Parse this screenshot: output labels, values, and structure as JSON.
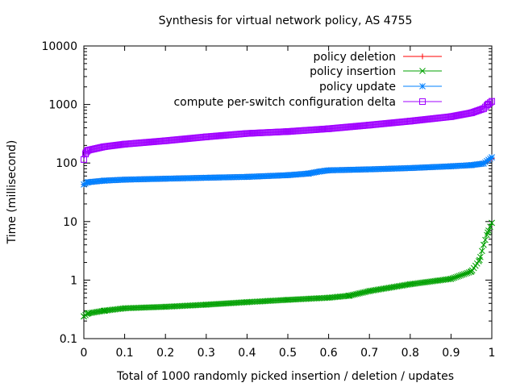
{
  "chart_data": {
    "type": "line",
    "title": "Synthesis for virtual network policy, AS 4755",
    "xlabel": "Total of 1000 randomly picked insertion / deletion / updates",
    "ylabel": "Time (millisecond)",
    "xlim": [
      0,
      1
    ],
    "ylim": [
      0.1,
      10000
    ],
    "yscale": "log",
    "grid": false,
    "legend_position": "top-right",
    "x_ticks": [
      "0",
      "0.1",
      "0.2",
      "0.3",
      "0.4",
      "0.5",
      "0.6",
      "0.7",
      "0.8",
      "0.9",
      "1"
    ],
    "y_ticks": [
      "0.1",
      "1",
      "10",
      "100",
      "1000",
      "10000"
    ],
    "series": [
      {
        "name": "policy deletion",
        "color": "#ff0000",
        "marker": "plus",
        "x": [
          0,
          0.01,
          0.05,
          0.1,
          0.2,
          0.3,
          0.4,
          0.5,
          0.55,
          0.58,
          0.6,
          0.7,
          0.8,
          0.9,
          0.95,
          0.98,
          1.0
        ],
        "y": [
          43,
          47,
          50,
          52,
          54,
          56,
          58,
          62,
          66,
          72,
          75,
          78,
          82,
          88,
          92,
          98,
          120
        ]
      },
      {
        "name": "policy insertion",
        "color": "#00a000",
        "marker": "x",
        "x": [
          0,
          0.01,
          0.05,
          0.1,
          0.2,
          0.3,
          0.4,
          0.5,
          0.6,
          0.65,
          0.7,
          0.8,
          0.9,
          0.95,
          0.97,
          0.98,
          0.99,
          1.0
        ],
        "y": [
          0.24,
          0.27,
          0.3,
          0.33,
          0.35,
          0.38,
          0.42,
          0.46,
          0.5,
          0.54,
          0.65,
          0.85,
          1.05,
          1.4,
          2.2,
          4.0,
          6.5,
          9.5
        ]
      },
      {
        "name": "policy update",
        "color": "#0080ff",
        "marker": "star",
        "x": [
          0,
          0.01,
          0.05,
          0.1,
          0.2,
          0.3,
          0.4,
          0.5,
          0.55,
          0.58,
          0.6,
          0.7,
          0.8,
          0.9,
          0.95,
          0.98,
          1.0
        ],
        "y": [
          43,
          47,
          50,
          52,
          54,
          56,
          58,
          62,
          66,
          72,
          75,
          78,
          82,
          88,
          92,
          98,
          125
        ]
      },
      {
        "name": "compute per-switch configuration delta",
        "color": "#a000ff",
        "marker": "square",
        "x": [
          0,
          0.005,
          0.01,
          0.05,
          0.1,
          0.2,
          0.3,
          0.4,
          0.5,
          0.6,
          0.7,
          0.8,
          0.9,
          0.95,
          0.98,
          0.99,
          1.0
        ],
        "y": [
          115,
          150,
          165,
          190,
          210,
          240,
          280,
          320,
          345,
          385,
          445,
          520,
          620,
          720,
          850,
          1000,
          1130
        ]
      }
    ]
  }
}
